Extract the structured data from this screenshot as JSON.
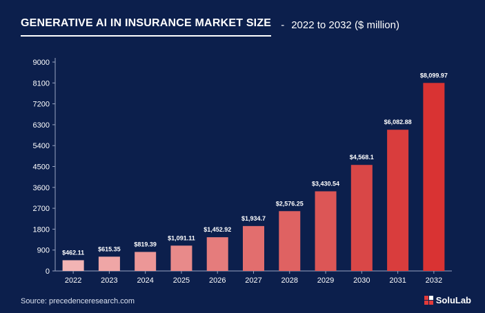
{
  "header": {
    "title": "GENERATIVE AI IN INSURANCE MARKET SIZE",
    "separator": "-",
    "subtitle": "2022 to 2032 ($ million)"
  },
  "footer": {
    "source": "Source: precedenceresearch.com",
    "brand": "SoluLab",
    "brand_icon": "solulab-logo-icon"
  },
  "chart_data": {
    "type": "bar",
    "title": "GENERATIVE AI IN INSURANCE MARKET SIZE",
    "subtitle": "2022 to 2032 ($ million)",
    "xlabel": "",
    "ylabel": "",
    "ylim": [
      0,
      9000
    ],
    "yticks": [
      0,
      900,
      1800,
      2700,
      3600,
      4500,
      5400,
      6300,
      7200,
      8100,
      9000
    ],
    "categories": [
      "2022",
      "2023",
      "2024",
      "2025",
      "2026",
      "2027",
      "2028",
      "2029",
      "2030",
      "2031",
      "2032"
    ],
    "values": [
      462.11,
      615.35,
      819.39,
      1091.11,
      1452.92,
      1934.7,
      2576.25,
      3430.54,
      4568.1,
      6082.88,
      8099.97
    ],
    "data_labels": [
      "$462.11",
      "$615.35",
      "$819.39",
      "$1,091.11",
      "$1,452.92",
      "$1,934.7",
      "$2,576.25",
      "$3,430.54",
      "$4,568.1",
      "$6,082.88",
      "$8,099.97"
    ],
    "bar_colors": [
      "#f2b4b4",
      "#efa6a6",
      "#ec9797",
      "#e88a8a",
      "#e57c7c",
      "#e26e6e",
      "#df6262",
      "#dc5656",
      "#d94747",
      "#d93d3d",
      "#d93333"
    ],
    "grid": false,
    "legend": "none"
  }
}
